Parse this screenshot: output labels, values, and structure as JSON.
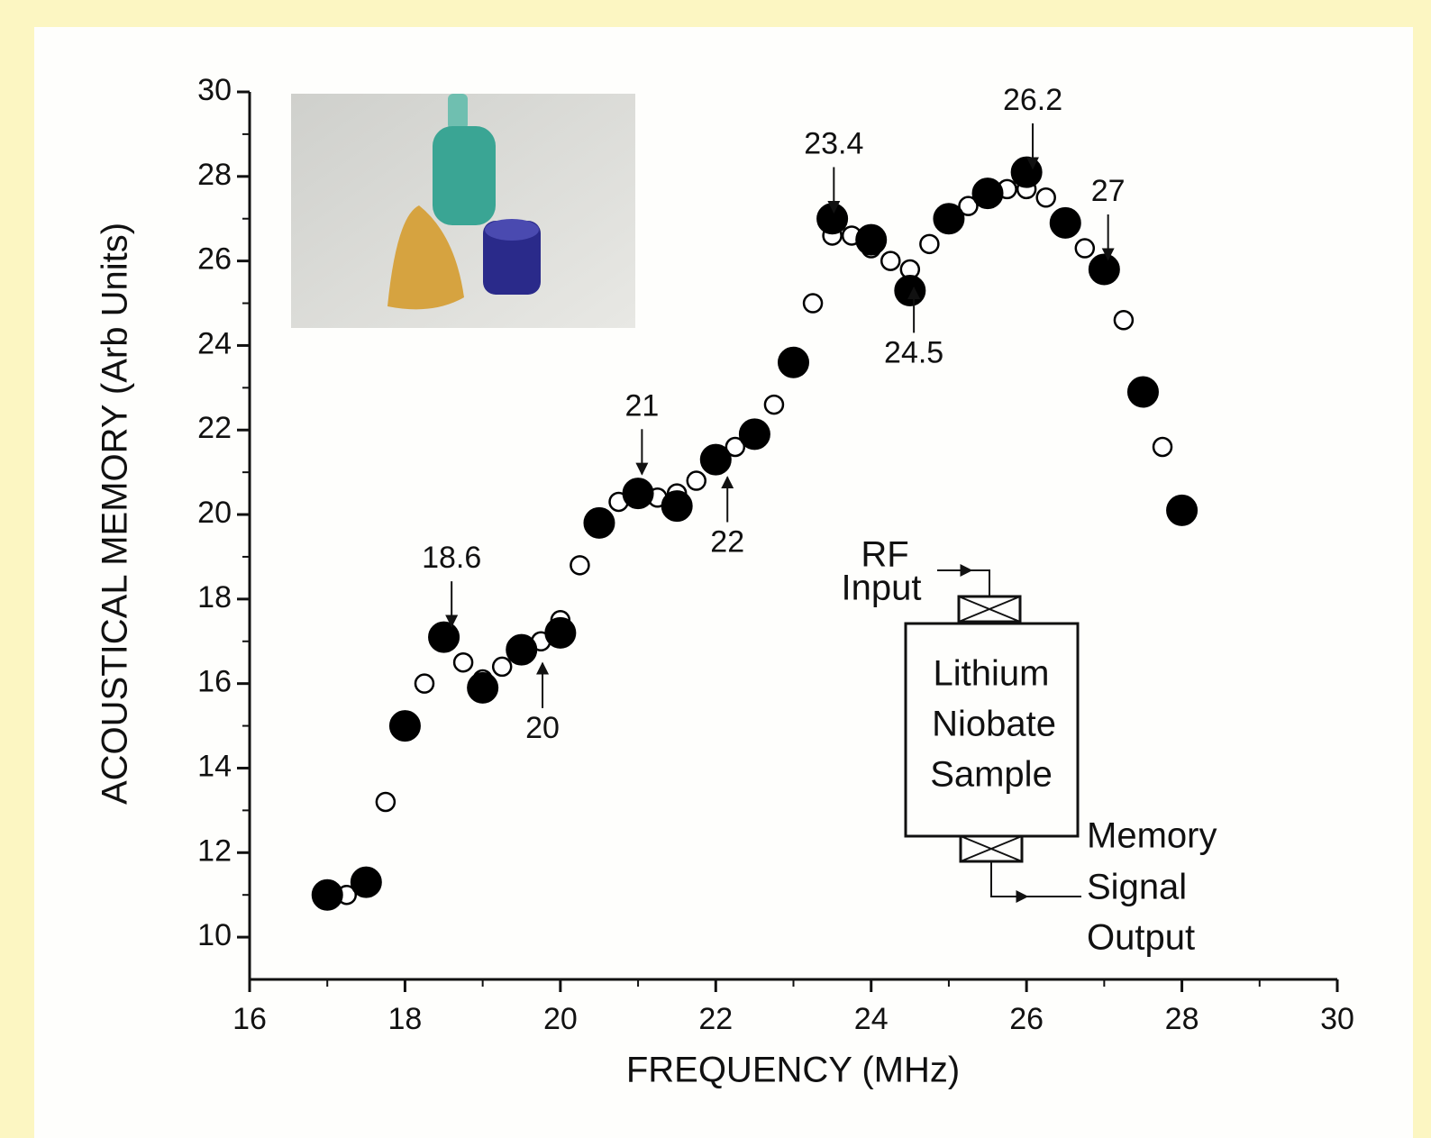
{
  "chart_data": {
    "type": "scatter",
    "xlabel": "FREQUENCY (MHz)",
    "ylabel": "ACOUSTICAL MEMORY (Arb Units)",
    "xlim": [
      16,
      30
    ],
    "ylim": [
      9,
      30
    ],
    "xticks": [
      16,
      18,
      20,
      22,
      24,
      26,
      28,
      30
    ],
    "yticks": [
      10,
      12,
      14,
      16,
      18,
      20,
      22,
      24,
      26,
      28,
      30
    ],
    "xminorticks": [
      17,
      19,
      21,
      23,
      25,
      27,
      29
    ],
    "yminorticks": [
      11,
      13,
      15,
      17,
      19,
      21,
      23,
      25,
      27,
      29
    ],
    "series": [
      {
        "marker": "open",
        "color": "#000000",
        "x": [
          17,
          17.25,
          17.5,
          17.75,
          18,
          18.25,
          18.5,
          18.75,
          19,
          19.25,
          19.5,
          19.75,
          20,
          20.25,
          20.5,
          20.75,
          21,
          21.25,
          21.5,
          21.75,
          22,
          22.25,
          22.5,
          22.75,
          23,
          23.25,
          23.5,
          23.75,
          24,
          24.25,
          24.5,
          24.75,
          25,
          25.25,
          25.5,
          25.75,
          26,
          26.25,
          26.5,
          26.75,
          27,
          27.25,
          27.5,
          27.75,
          28
        ],
        "values": [
          11.0,
          11.0,
          11.3,
          13.2,
          15.0,
          16.0,
          17.0,
          16.5,
          16.1,
          16.4,
          16.8,
          17.0,
          17.5,
          18.8,
          19.8,
          20.3,
          20.4,
          20.4,
          20.5,
          20.8,
          21.2,
          21.6,
          22.0,
          22.6,
          23.5,
          25.0,
          26.6,
          26.6,
          26.3,
          26.0,
          25.8,
          26.4,
          27.0,
          27.3,
          27.6,
          27.7,
          27.7,
          27.5,
          26.9,
          26.3,
          25.7,
          24.6,
          23.0,
          21.6,
          20.0
        ]
      },
      {
        "marker": "filled",
        "color": "#000000",
        "x": [
          17,
          17.5,
          18,
          18.5,
          19,
          19.5,
          20,
          20.5,
          21,
          21.5,
          22,
          22.5,
          23,
          23.5,
          24,
          24.5,
          25,
          25.5,
          26,
          26.5,
          27,
          27.5,
          28
        ],
        "values": [
          11.0,
          11.3,
          15.0,
          17.1,
          15.9,
          16.8,
          17.2,
          19.8,
          20.5,
          20.2,
          21.3,
          21.9,
          23.6,
          27.0,
          26.5,
          25.3,
          27.0,
          27.6,
          28.1,
          26.9,
          25.8,
          22.9,
          20.1
        ]
      }
    ],
    "annotations": [
      {
        "text": "18.6",
        "x": 18.6,
        "side": "above"
      },
      {
        "text": "20",
        "x": 19.77,
        "side": "below"
      },
      {
        "text": "21",
        "x": 21.05,
        "side": "above"
      },
      {
        "text": "22",
        "x": 22.15,
        "side": "below"
      },
      {
        "text": "23.4",
        "x": 23.52,
        "side": "above"
      },
      {
        "text": "24.5",
        "x": 24.55,
        "side": "below"
      },
      {
        "text": "26.2",
        "x": 26.08,
        "side": "above"
      },
      {
        "text": "27",
        "x": 27.05,
        "side": "above"
      }
    ],
    "diagram": {
      "box_label": [
        "Lithium",
        "Niobate",
        "Sample"
      ],
      "input_label": [
        "RF",
        "Input"
      ],
      "output_label": [
        "Memory",
        "Signal",
        "Output"
      ]
    }
  }
}
